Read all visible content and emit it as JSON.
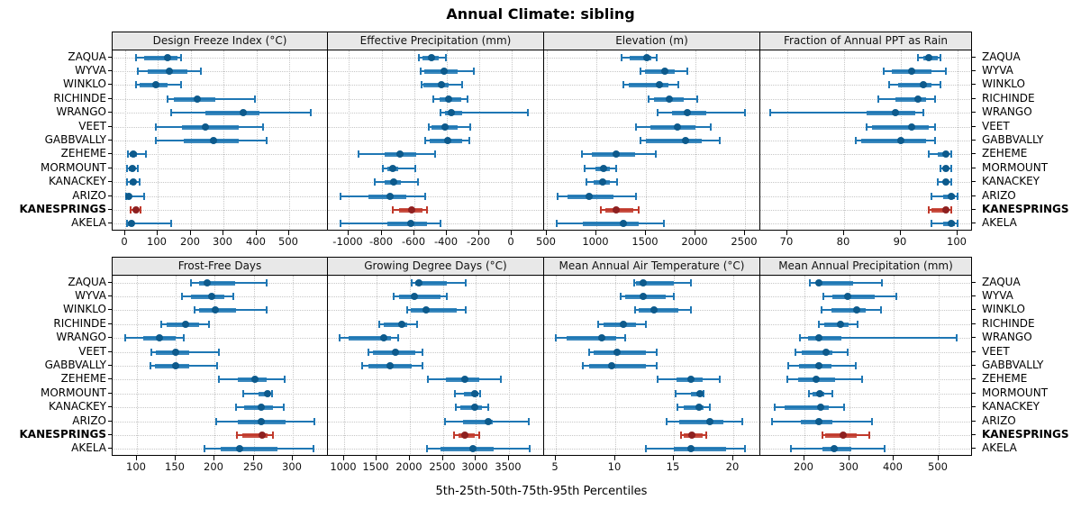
{
  "colors": {
    "blue_band": "#1f77b4",
    "blue_dot": "#0d5a8c",
    "red_band": "#c0392b",
    "red_dot": "#8e2020",
    "strip_bg": "#e8e8e8",
    "grid": "#c7c7c7",
    "border": "#000000"
  },
  "chart_data": {
    "type": "percentile-dotplot-trellis",
    "title": "Annual Climate: sibling",
    "xlabel": "5th-25th-50th-75th-95th Percentiles",
    "percentile_levels": [
      "5th",
      "25th",
      "50th",
      "75th",
      "95th"
    ],
    "grid": {
      "rows": 2,
      "cols": 4,
      "grid_lines": "dotted"
    },
    "sites": [
      "ZAQUA",
      "WYVA",
      "WINKLO",
      "RICHINDE",
      "WRANGO",
      "VEET",
      "GABBVALLY",
      "ZEHEME",
      "MORMOUNT",
      "KANACKEY",
      "ARIZO",
      "KANESPRINGS",
      "AKELA"
    ],
    "highlighted_site": "KANESPRINGS",
    "panels": [
      {
        "title": "Design Freeze Index (°C)",
        "row": 0,
        "col": 0,
        "xlim": [
          -37,
          617
        ],
        "ticks": [
          0,
          100,
          200,
          300,
          400,
          500
        ],
        "tick_labels": [
          "0",
          "100",
          "200",
          "300",
          "400",
          "500"
        ],
        "values": {
          "ZAQUA": [
            35,
            60,
            130,
            160,
            170
          ],
          "WYVA": [
            40,
            70,
            135,
            190,
            230
          ],
          "WINKLO": [
            35,
            45,
            95,
            130,
            170
          ],
          "RICHINDE": [
            130,
            150,
            220,
            275,
            395
          ],
          "WRANGO": [
            140,
            245,
            360,
            410,
            565
          ],
          "VEET": [
            95,
            175,
            245,
            345,
            420
          ],
          "GABBVALLY": [
            95,
            180,
            270,
            345,
            430
          ],
          "ZEHEME": [
            10,
            15,
            27,
            38,
            65
          ],
          "MORMOUNT": [
            8,
            12,
            24,
            30,
            40
          ],
          "KANACKEY": [
            8,
            14,
            25,
            33,
            45
          ],
          "ARIZO": [
            3,
            5,
            11,
            20,
            60
          ],
          "KANESPRINGS": [
            17,
            27,
            33,
            40,
            47
          ],
          "AKELA": [
            6,
            10,
            20,
            30,
            140
          ]
        }
      },
      {
        "title": "Effective Precipitation (mm)",
        "row": 0,
        "col": 1,
        "xlim": [
          -1130,
          200
        ],
        "ticks": [
          -1000,
          -800,
          -600,
          -400,
          -200,
          0
        ],
        "tick_labels": [
          "-1000",
          "-800",
          "-600",
          "-400",
          "-200",
          "0"
        ],
        "values": {
          "ZAQUA": [
            -570,
            -550,
            -490,
            -450,
            -405
          ],
          "WYVA": [
            -560,
            -535,
            -415,
            -330,
            -235
          ],
          "WINKLO": [
            -555,
            -540,
            -430,
            -390,
            -305
          ],
          "RICHINDE": [
            -480,
            -445,
            -385,
            -310,
            -270
          ],
          "WRANGO": [
            -440,
            -410,
            -370,
            -305,
            100
          ],
          "VEET": [
            -510,
            -490,
            -410,
            -330,
            -255
          ],
          "GABBVALLY": [
            -530,
            -505,
            -395,
            -305,
            -260
          ],
          "ZEHEME": [
            -940,
            -780,
            -685,
            -585,
            -470
          ],
          "MORMOUNT": [
            -790,
            -765,
            -730,
            -695,
            -595
          ],
          "KANACKEY": [
            -840,
            -780,
            -725,
            -680,
            -575
          ],
          "ARIZO": [
            -1050,
            -880,
            -750,
            -650,
            -530
          ],
          "KANESPRINGS": [
            -730,
            -690,
            -615,
            -550,
            -520
          ],
          "AKELA": [
            -1050,
            -765,
            -620,
            -520,
            -435
          ]
        }
      },
      {
        "title": "Elevation (m)",
        "row": 0,
        "col": 2,
        "xlim": [
          470,
          2650
        ],
        "ticks": [
          500,
          1000,
          1500,
          2000,
          2500
        ],
        "tick_labels": [
          "500",
          "1000",
          "1500",
          "2000",
          "2500"
        ],
        "values": {
          "ZAQUA": [
            1250,
            1335,
            1505,
            1550,
            1605
          ],
          "WYVA": [
            1440,
            1485,
            1690,
            1790,
            1910
          ],
          "WINKLO": [
            1265,
            1320,
            1635,
            1725,
            1825
          ],
          "RICHINDE": [
            1525,
            1575,
            1735,
            1880,
            2015
          ],
          "WRANGO": [
            1615,
            1760,
            1910,
            2105,
            2500
          ],
          "VEET": [
            1395,
            1545,
            1810,
            2000,
            2150
          ],
          "GABBVALLY": [
            1440,
            1500,
            1900,
            2060,
            2240
          ],
          "ZEHEME": [
            850,
            955,
            1200,
            1390,
            1600
          ],
          "MORMOUNT": [
            880,
            985,
            1070,
            1135,
            1195
          ],
          "KANACKEY": [
            895,
            970,
            1060,
            1135,
            1205
          ],
          "ARIZO": [
            605,
            710,
            925,
            1165,
            1395
          ],
          "KANESPRINGS": [
            1045,
            1085,
            1195,
            1365,
            1425
          ],
          "AKELA": [
            600,
            865,
            1265,
            1425,
            1680
          ]
        }
      },
      {
        "title": "Fraction of Annual PPT as Rain",
        "row": 0,
        "col": 3,
        "xlim": [
          65.2,
          102.6
        ],
        "ticks": [
          70,
          80,
          90,
          100
        ],
        "tick_labels": [
          "70",
          "80",
          "90",
          "100"
        ],
        "values": {
          "ZAQUA": [
            93,
            94,
            95,
            96.5,
            97
          ],
          "WYVA": [
            87,
            88.5,
            92,
            95.5,
            98
          ],
          "WINKLO": [
            88,
            89.5,
            94,
            95.5,
            97
          ],
          "RICHINDE": [
            86,
            89,
            93,
            94.5,
            96
          ],
          "WRANGO": [
            67,
            84,
            89,
            92.5,
            94
          ],
          "VEET": [
            84,
            85,
            92,
            95,
            96
          ],
          "GABBVALLY": [
            82,
            83,
            90,
            94.5,
            96
          ],
          "ZEHEME": [
            95,
            96.5,
            98,
            98.5,
            99
          ],
          "MORMOUNT": [
            97,
            97.5,
            98,
            98.5,
            99
          ],
          "KANACKEY": [
            96.5,
            97.5,
            98,
            98.5,
            99
          ],
          "ARIZO": [
            95.5,
            97.5,
            99,
            99.5,
            100
          ],
          "KANESPRINGS": [
            95,
            95.5,
            98,
            98.5,
            99
          ],
          "AKELA": [
            95.5,
            97.5,
            99,
            99.5,
            100
          ]
        }
      },
      {
        "title": "Frost-Free Days",
        "row": 1,
        "col": 0,
        "xlim": [
          69,
          345
        ],
        "ticks": [
          100,
          150,
          200,
          250,
          300
        ],
        "tick_labels": [
          "100",
          "150",
          "200",
          "250",
          "300"
        ],
        "values": {
          "ZAQUA": [
            170,
            180,
            190,
            226,
            267
          ],
          "WYVA": [
            158,
            169,
            196,
            212,
            224
          ],
          "WINKLO": [
            174,
            180,
            201,
            227,
            267
          ],
          "RICHINDE": [
            131,
            138,
            163,
            180,
            193
          ],
          "WRANGO": [
            85,
            108,
            129,
            150,
            160
          ],
          "VEET": [
            119,
            125,
            150,
            167,
            205
          ],
          "GABBVALLY": [
            117,
            123,
            150,
            167,
            203
          ],
          "ZEHEME": [
            205,
            230,
            252,
            267,
            290
          ],
          "MORMOUNT": [
            237,
            256,
            268,
            271,
            273
          ],
          "KANACKEY": [
            227,
            238,
            260,
            275,
            288
          ],
          "ARIZO": [
            202,
            230,
            260,
            291,
            328
          ],
          "KANESPRINGS": [
            228,
            235,
            261,
            268,
            275
          ],
          "AKELA": [
            187,
            208,
            232,
            280,
            326
          ]
        }
      },
      {
        "title": "Growing Degree Days (°C)",
        "row": 1,
        "col": 1,
        "xlim": [
          760,
          4030
        ],
        "ticks": [
          1000,
          1500,
          2000,
          2500,
          3000,
          3500
        ],
        "tick_labels": [
          "1000",
          "1500",
          "2000",
          "2500",
          "3000",
          "3500"
        ],
        "values": {
          "ZAQUA": [
            2030,
            2080,
            2135,
            2555,
            2840
          ],
          "WYVA": [
            1760,
            1830,
            2065,
            2465,
            2555
          ],
          "WINKLO": [
            1955,
            2010,
            2245,
            2715,
            2840
          ],
          "RICHINDE": [
            1530,
            1600,
            1880,
            1965,
            2115
          ],
          "WRANGO": [
            940,
            1075,
            1600,
            1715,
            1825
          ],
          "VEET": [
            1375,
            1440,
            1780,
            2075,
            2190
          ],
          "GABBVALLY": [
            1280,
            1375,
            1700,
            2030,
            2190
          ],
          "ZEHEME": [
            2275,
            2545,
            2825,
            3055,
            3370
          ],
          "MORMOUNT": [
            2680,
            2820,
            2975,
            3030,
            3065
          ],
          "KANACKEY": [
            2690,
            2760,
            2975,
            3090,
            3180
          ],
          "ARIZO": [
            2530,
            2805,
            3180,
            3260,
            3805
          ],
          "KANESPRINGS": [
            2670,
            2730,
            2835,
            2985,
            3045
          ],
          "AKELA": [
            2260,
            2465,
            2955,
            3270,
            3815
          ]
        }
      },
      {
        "title": "Mean Annual Air Temperature (°C)",
        "row": 1,
        "col": 2,
        "xlim": [
          4.0,
          22.3
        ],
        "ticks": [
          5,
          10,
          15,
          20
        ],
        "tick_labels": [
          "5",
          "10",
          "15",
          "20"
        ],
        "values": {
          "ZAQUA": [
            11.6,
            11.8,
            12.4,
            15.0,
            16.4
          ],
          "WYVA": [
            10.5,
            10.9,
            12.4,
            14.3,
            15.0
          ],
          "WINKLO": [
            11.7,
            12.0,
            13.3,
            15.4,
            16.4
          ],
          "RICHINDE": [
            8.6,
            9.0,
            10.7,
            11.8,
            12.6
          ],
          "WRANGO": [
            5.0,
            5.9,
            8.9,
            10.1,
            10.9
          ],
          "VEET": [
            7.8,
            8.2,
            10.2,
            12.6,
            13.5
          ],
          "GABBVALLY": [
            7.3,
            7.8,
            9.7,
            12.6,
            13.5
          ],
          "ZEHEME": [
            13.6,
            15.2,
            16.4,
            17.4,
            18.9
          ],
          "MORMOUNT": [
            15.1,
            16.4,
            17.2,
            17.4,
            17.5
          ],
          "KANACKEY": [
            15.3,
            15.8,
            17.1,
            17.5,
            18.0
          ],
          "ARIZO": [
            14.4,
            15.4,
            18.0,
            19.2,
            20.8
          ],
          "KANESPRINGS": [
            15.6,
            15.8,
            16.5,
            17.4,
            17.7
          ],
          "AKELA": [
            12.6,
            15.0,
            16.4,
            19.4,
            21.0
          ]
        }
      },
      {
        "title": "Mean Annual Precipitation (mm)",
        "row": 1,
        "col": 3,
        "xlim": [
          100,
          575
        ],
        "ticks": [
          200,
          300,
          400,
          500
        ],
        "tick_labels": [
          "200",
          "300",
          "400",
          "500"
        ],
        "values": {
          "ZAQUA": [
            212,
            225,
            231,
            308,
            372
          ],
          "WYVA": [
            241,
            261,
            296,
            357,
            405
          ],
          "WINKLO": [
            237,
            259,
            317,
            336,
            370
          ],
          "RICHINDE": [
            231,
            243,
            279,
            298,
            318
          ],
          "WRANGO": [
            189,
            207,
            231,
            282,
            540
          ],
          "VEET": [
            178,
            193,
            247,
            262,
            297
          ],
          "GABBVALLY": [
            163,
            187,
            231,
            259,
            315
          ],
          "ZEHEME": [
            161,
            184,
            226,
            268,
            328
          ],
          "MORMOUNT": [
            209,
            218,
            233,
            243,
            261
          ],
          "KANACKEY": [
            133,
            154,
            235,
            254,
            287
          ],
          "ARIZO": [
            127,
            190,
            231,
            262,
            351
          ],
          "KANESPRINGS": [
            239,
            246,
            285,
            317,
            344
          ],
          "AKELA": [
            169,
            239,
            266,
            305,
            379
          ]
        }
      }
    ]
  }
}
